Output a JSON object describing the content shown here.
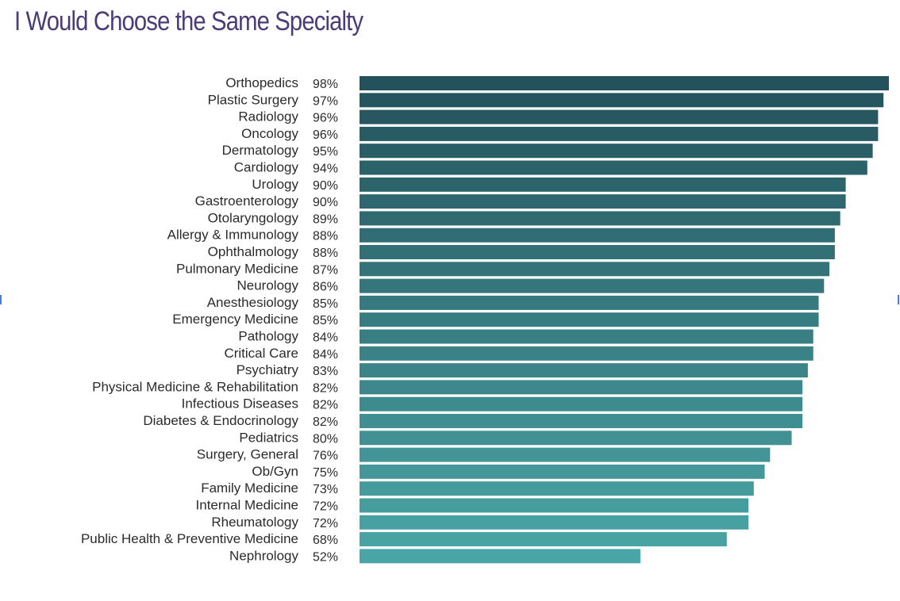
{
  "chart_data": {
    "type": "bar",
    "orientation": "horizontal",
    "title": "I Would Choose the Same Specialty",
    "xlabel": "",
    "ylabel": "",
    "xlim": [
      0,
      100
    ],
    "grid": false,
    "legend": "none",
    "value_format": "percent",
    "bar_color_dark": "#24525c",
    "bar_color_light": "#4aa6a6",
    "categories": [
      "Orthopedics",
      "Plastic Surgery",
      "Radiology",
      "Oncology",
      "Dermatology",
      "Cardiology",
      "Urology",
      "Gastroenterology",
      "Otolaryngology",
      "Allergy & Immunology",
      "Ophthalmology",
      "Pulmonary Medicine",
      "Neurology",
      "Anesthesiology",
      "Emergency Medicine",
      "Pathology",
      "Critical Care",
      "Psychiatry",
      "Physical Medicine & Rehabilitation",
      "Infectious Diseases",
      "Diabetes & Endocrinology",
      "Pediatrics",
      "Surgery, General",
      "Ob/Gyn",
      "Family Medicine",
      "Internal Medicine",
      "Rheumatology",
      "Public Health & Preventive Medicine",
      "Nephrology"
    ],
    "values": [
      98,
      97,
      96,
      96,
      95,
      94,
      90,
      90,
      89,
      88,
      88,
      87,
      86,
      85,
      85,
      84,
      84,
      83,
      82,
      82,
      82,
      80,
      76,
      75,
      73,
      72,
      72,
      68,
      52
    ],
    "value_labels": [
      "98%",
      "97%",
      "96%",
      "96%",
      "95%",
      "94%",
      "90%",
      "90%",
      "89%",
      "88%",
      "88%",
      "87%",
      "86%",
      "85%",
      "85%",
      "84%",
      "84%",
      "83%",
      "82%",
      "82%",
      "82%",
      "80%",
      "76%",
      "75%",
      "73%",
      "72%",
      "72%",
      "68%",
      "52%"
    ]
  }
}
